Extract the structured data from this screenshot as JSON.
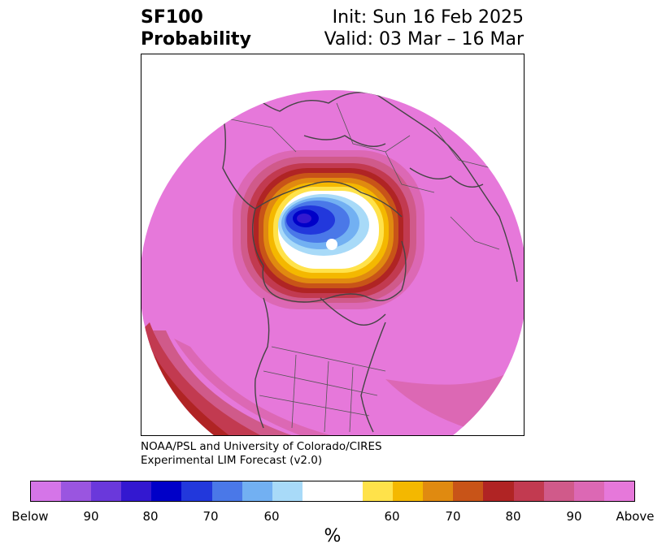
{
  "header": {
    "left_line1": "SF100",
    "left_line2": "Probability",
    "right_line1": "Init: Sun 16 Feb 2025",
    "right_line2": "Valid: 03 Mar – 16 Mar"
  },
  "credit": {
    "line1": "NOAA/PSL and University of Colorado/CIRES",
    "line2": "Experimental LIM Forecast (v2.0)"
  },
  "colorbar": {
    "unit": "%",
    "colors": [
      "#d575e8",
      "#9a55e0",
      "#6a38db",
      "#3318d0",
      "#0000c8",
      "#2238dc",
      "#4a78e8",
      "#72b0f2",
      "#a8daf8",
      "#ffffff",
      "#ffe24a",
      "#f4b800",
      "#e08a10",
      "#c85418",
      "#b02424",
      "#c23a50",
      "#d05a8a",
      "#dc68b4",
      "#e678da"
    ],
    "labels": [
      "Below",
      "90",
      "80",
      "70",
      "60",
      "60",
      "70",
      "80",
      "90",
      "Above"
    ]
  },
  "map": {
    "projection": "north-polar-stereographic",
    "feature_icons": [
      "coastline-outline",
      "country-borders",
      "us-state-borders",
      "probability-contour-shading"
    ]
  }
}
